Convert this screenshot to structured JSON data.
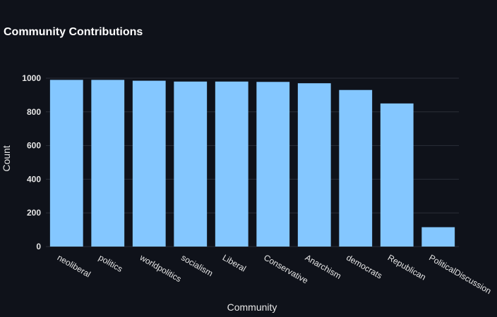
{
  "chart_data": {
    "type": "bar",
    "title": "Community Contributions",
    "xlabel": "Community",
    "ylabel": "Count",
    "categories": [
      "neoliberal",
      "politics",
      "worldpolitics",
      "socialism",
      "Liberal",
      "Conservative",
      "Anarchism",
      "democrats",
      "Republican",
      "PoliticalDiscussion"
    ],
    "values": [
      990,
      990,
      985,
      980,
      980,
      978,
      970,
      930,
      850,
      115
    ],
    "yticks": [
      0,
      200,
      400,
      600,
      800,
      1000
    ],
    "ylim": [
      0,
      1000
    ],
    "grid": true,
    "bar_color": "#84c7ff",
    "background": "#0f121a"
  }
}
